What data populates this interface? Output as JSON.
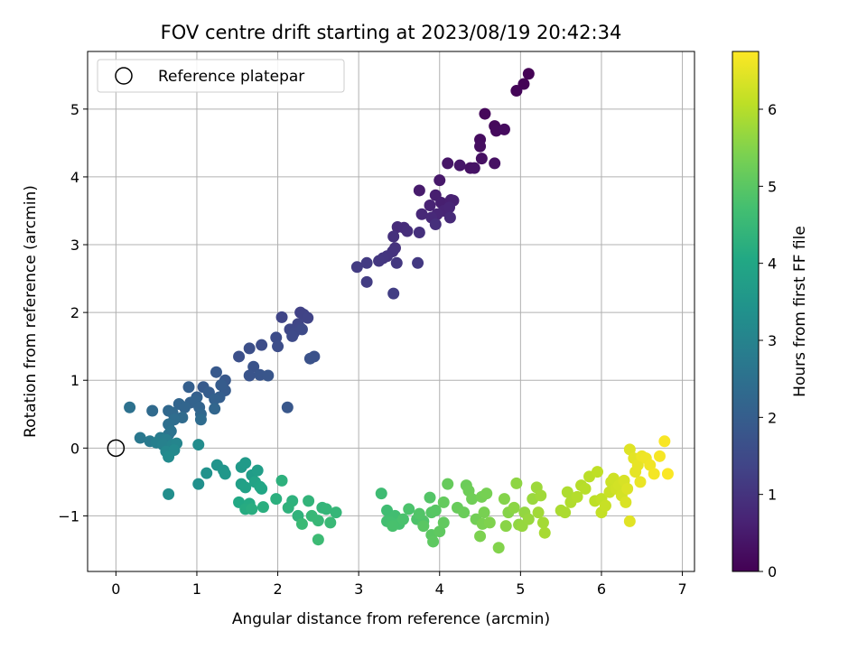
{
  "chart_data": {
    "type": "scatter",
    "title": "FOV centre drift starting at 2023/08/19 20:42:34",
    "xlabel": "Angular distance from reference (arcmin)",
    "ylabel": "Rotation from reference (arcmin)",
    "xlim": [
      -0.35,
      7.15
    ],
    "ylim": [
      -1.82,
      5.85
    ],
    "xticks": [
      0,
      1,
      2,
      3,
      4,
      5,
      6,
      7
    ],
    "yticks": [
      -1,
      0,
      1,
      2,
      3,
      4,
      5
    ],
    "grid": true,
    "legend": {
      "placement": "top-left",
      "entries": [
        "Reference platepar"
      ]
    },
    "reference_point": {
      "x": 0,
      "y": 0
    },
    "colorbar": {
      "label": "Hours from first FF file",
      "range": [
        0,
        6.75
      ],
      "ticks": [
        0,
        1,
        2,
        3,
        4,
        5,
        6
      ],
      "colormap": "viridis"
    },
    "points": [
      [
        5.1,
        5.52,
        0.02
      ],
      [
        5.04,
        5.37,
        0.05
      ],
      [
        4.95,
        5.27,
        0.08
      ],
      [
        4.56,
        4.93,
        0.12
      ],
      [
        4.68,
        4.75,
        0.15
      ],
      [
        4.7,
        4.68,
        0.18
      ],
      [
        4.8,
        4.7,
        0.2
      ],
      [
        4.5,
        4.55,
        0.22
      ],
      [
        4.5,
        4.45,
        0.25
      ],
      [
        4.52,
        4.27,
        0.28
      ],
      [
        4.68,
        4.2,
        0.3
      ],
      [
        4.38,
        4.13,
        0.33
      ],
      [
        4.43,
        4.13,
        0.35
      ],
      [
        4.1,
        4.2,
        0.38
      ],
      [
        4.25,
        4.17,
        0.4
      ],
      [
        4.0,
        3.95,
        0.45
      ],
      [
        3.75,
        3.8,
        0.5
      ],
      [
        3.95,
        3.73,
        0.55
      ],
      [
        4.02,
        3.62,
        0.58
      ],
      [
        4.14,
        3.66,
        0.6
      ],
      [
        4.17,
        3.65,
        0.62
      ],
      [
        3.88,
        3.58,
        0.65
      ],
      [
        4.05,
        3.5,
        0.68
      ],
      [
        4.12,
        3.55,
        0.7
      ],
      [
        3.97,
        3.45,
        0.72
      ],
      [
        3.78,
        3.45,
        0.75
      ],
      [
        3.9,
        3.4,
        0.78
      ],
      [
        4.13,
        3.4,
        0.8
      ],
      [
        3.48,
        3.26,
        0.83
      ],
      [
        3.56,
        3.25,
        0.85
      ],
      [
        3.6,
        3.2,
        0.88
      ],
      [
        3.95,
        3.3,
        0.9
      ],
      [
        3.75,
        3.18,
        0.92
      ],
      [
        3.43,
        3.12,
        0.95
      ],
      [
        3.45,
        2.95,
        0.98
      ],
      [
        3.42,
        2.9,
        1.0
      ],
      [
        3.35,
        2.83,
        1.02
      ],
      [
        3.3,
        2.8,
        1.05
      ],
      [
        3.25,
        2.76,
        1.08
      ],
      [
        3.47,
        2.73,
        1.1
      ],
      [
        3.73,
        2.73,
        1.12
      ],
      [
        3.1,
        2.73,
        1.15
      ],
      [
        2.98,
        2.67,
        1.18
      ],
      [
        3.1,
        2.45,
        1.2
      ],
      [
        3.43,
        2.28,
        1.22
      ],
      [
        2.28,
        2.0,
        1.3
      ],
      [
        2.32,
        1.97,
        1.32
      ],
      [
        2.37,
        1.92,
        1.35
      ],
      [
        2.05,
        1.93,
        1.38
      ],
      [
        2.25,
        1.83,
        1.4
      ],
      [
        2.28,
        1.77,
        1.42
      ],
      [
        2.15,
        1.75,
        1.45
      ],
      [
        2.2,
        1.7,
        1.48
      ],
      [
        2.3,
        1.75,
        1.5
      ],
      [
        2.18,
        1.65,
        1.52
      ],
      [
        1.98,
        1.63,
        1.55
      ],
      [
        1.8,
        1.52,
        1.58
      ],
      [
        2.0,
        1.5,
        1.6
      ],
      [
        1.65,
        1.47,
        1.62
      ],
      [
        1.52,
        1.35,
        1.65
      ],
      [
        2.45,
        1.35,
        1.68
      ],
      [
        2.4,
        1.32,
        1.7
      ],
      [
        1.7,
        1.2,
        1.72
      ],
      [
        1.65,
        1.07,
        1.75
      ],
      [
        1.78,
        1.08,
        1.78
      ],
      [
        1.88,
        1.07,
        1.8
      ],
      [
        2.12,
        0.6,
        1.82
      ],
      [
        1.35,
        1.0,
        1.85
      ],
      [
        1.24,
        1.12,
        1.88
      ],
      [
        1.08,
        0.9,
        1.9
      ],
      [
        1.35,
        0.85,
        1.92
      ],
      [
        1.3,
        0.93,
        1.95
      ],
      [
        1.15,
        0.82,
        1.98
      ],
      [
        1.28,
        0.75,
        2.0
      ],
      [
        0.9,
        0.9,
        2.02
      ],
      [
        1.0,
        0.75,
        2.05
      ],
      [
        1.22,
        0.72,
        2.08
      ],
      [
        0.92,
        0.67,
        2.1
      ],
      [
        0.98,
        0.7,
        2.12
      ],
      [
        1.03,
        0.6,
        2.15
      ],
      [
        0.78,
        0.65,
        2.18
      ],
      [
        0.85,
        0.6,
        2.2
      ],
      [
        1.22,
        0.58,
        2.22
      ],
      [
        1.05,
        0.5,
        2.25
      ],
      [
        0.65,
        0.55,
        2.28
      ],
      [
        0.7,
        0.52,
        2.3
      ],
      [
        0.45,
        0.55,
        2.32
      ],
      [
        0.82,
        0.45,
        2.35
      ],
      [
        1.05,
        0.42,
        2.38
      ],
      [
        0.72,
        0.42,
        2.4
      ],
      [
        0.65,
        0.35,
        2.45
      ],
      [
        0.17,
        0.6,
        2.5
      ],
      [
        0.68,
        0.25,
        2.55
      ],
      [
        0.65,
        0.2,
        2.6
      ],
      [
        0.3,
        0.15,
        2.7
      ],
      [
        0.42,
        0.1,
        2.75
      ],
      [
        0.55,
        0.15,
        2.8
      ],
      [
        0.62,
        0.12,
        2.85
      ],
      [
        0.5,
        0.08,
        2.9
      ],
      [
        0.58,
        0.05,
        2.95
      ],
      [
        0.7,
        0.05,
        3.0
      ],
      [
        0.75,
        0.07,
        3.05
      ],
      [
        0.62,
        -0.05,
        3.1
      ],
      [
        0.72,
        -0.03,
        3.15
      ],
      [
        0.65,
        -0.13,
        3.2
      ],
      [
        1.02,
        0.05,
        3.25
      ],
      [
        0.65,
        -0.68,
        3.3
      ],
      [
        1.02,
        -0.53,
        3.35
      ],
      [
        1.12,
        -0.37,
        3.4
      ],
      [
        1.25,
        -0.25,
        3.45
      ],
      [
        1.33,
        -0.33,
        3.5
      ],
      [
        1.35,
        -0.38,
        3.55
      ],
      [
        1.55,
        -0.28,
        3.6
      ],
      [
        1.6,
        -0.22,
        3.65
      ],
      [
        1.68,
        -0.4,
        3.7
      ],
      [
        1.75,
        -0.33,
        3.75
      ],
      [
        1.55,
        -0.53,
        3.8
      ],
      [
        1.6,
        -0.58,
        3.85
      ],
      [
        1.72,
        -0.5,
        3.9
      ],
      [
        1.78,
        -0.57,
        3.95
      ],
      [
        1.8,
        -0.6,
        4.0
      ],
      [
        1.52,
        -0.8,
        4.05
      ],
      [
        1.65,
        -0.82,
        4.1
      ],
      [
        1.6,
        -0.9,
        4.15
      ],
      [
        1.68,
        -0.9,
        4.2
      ],
      [
        1.82,
        -0.87,
        4.22
      ],
      [
        1.98,
        -0.75,
        4.25
      ],
      [
        2.05,
        -0.48,
        4.28
      ],
      [
        2.18,
        -0.78,
        4.3
      ],
      [
        2.13,
        -0.88,
        4.32
      ],
      [
        2.25,
        -1.0,
        4.35
      ],
      [
        2.38,
        -0.78,
        4.38
      ],
      [
        2.55,
        -0.88,
        4.4
      ],
      [
        2.6,
        -0.9,
        4.42
      ],
      [
        2.72,
        -0.95,
        4.45
      ],
      [
        2.42,
        -1.0,
        4.48
      ],
      [
        2.5,
        -1.07,
        4.5
      ],
      [
        2.65,
        -1.1,
        4.52
      ],
      [
        2.3,
        -1.12,
        4.55
      ],
      [
        2.5,
        -1.35,
        4.58
      ],
      [
        3.28,
        -0.67,
        4.62
      ],
      [
        3.35,
        -0.92,
        4.65
      ],
      [
        3.45,
        -1.0,
        4.68
      ],
      [
        3.35,
        -1.08,
        4.7
      ],
      [
        3.4,
        -1.1,
        4.72
      ],
      [
        3.5,
        -1.12,
        4.75
      ],
      [
        3.42,
        -1.15,
        4.78
      ],
      [
        3.55,
        -1.05,
        4.8
      ],
      [
        3.62,
        -0.9,
        4.82
      ],
      [
        3.72,
        -1.05,
        4.85
      ],
      [
        3.8,
        -1.08,
        4.88
      ],
      [
        3.75,
        -0.97,
        4.9
      ],
      [
        3.88,
        -0.73,
        4.92
      ],
      [
        3.9,
        -0.95,
        4.95
      ],
      [
        3.95,
        -0.92,
        4.98
      ],
      [
        3.8,
        -1.15,
        5.0
      ],
      [
        3.9,
        -1.28,
        5.02
      ],
      [
        3.92,
        -1.38,
        5.05
      ],
      [
        4.0,
        -1.23,
        5.08
      ],
      [
        4.05,
        -1.1,
        5.1
      ],
      [
        4.05,
        -0.8,
        5.12
      ],
      [
        4.1,
        -0.53,
        5.15
      ],
      [
        4.22,
        -0.88,
        5.18
      ],
      [
        4.3,
        -0.95,
        5.2
      ],
      [
        4.33,
        -0.55,
        5.22
      ],
      [
        4.36,
        -0.63,
        5.25
      ],
      [
        4.4,
        -0.75,
        5.28
      ],
      [
        4.45,
        -1.05,
        5.3
      ],
      [
        4.52,
        -0.72,
        5.32
      ],
      [
        4.58,
        -0.67,
        5.35
      ],
      [
        4.55,
        -0.95,
        5.38
      ],
      [
        4.53,
        -1.12,
        5.4
      ],
      [
        4.5,
        -1.3,
        5.42
      ],
      [
        4.62,
        -1.1,
        5.45
      ],
      [
        4.73,
        -1.47,
        5.48
      ],
      [
        4.8,
        -0.75,
        5.5
      ],
      [
        4.85,
        -0.95,
        5.52
      ],
      [
        4.82,
        -1.15,
        5.55
      ],
      [
        4.92,
        -0.88,
        5.58
      ],
      [
        4.95,
        -0.52,
        5.6
      ],
      [
        4.98,
        -1.13,
        5.62
      ],
      [
        5.05,
        -0.95,
        5.65
      ],
      [
        5.02,
        -1.15,
        5.68
      ],
      [
        5.1,
        -1.05,
        5.7
      ],
      [
        5.15,
        -0.75,
        5.72
      ],
      [
        5.2,
        -0.58,
        5.75
      ],
      [
        5.25,
        -0.7,
        5.78
      ],
      [
        5.22,
        -0.95,
        5.8
      ],
      [
        5.28,
        -1.1,
        5.82
      ],
      [
        5.3,
        -1.25,
        5.85
      ],
      [
        5.5,
        -0.92,
        5.88
      ],
      [
        5.55,
        -0.95,
        5.9
      ],
      [
        5.58,
        -0.65,
        5.92
      ],
      [
        5.62,
        -0.8,
        5.95
      ],
      [
        5.7,
        -0.72,
        5.98
      ],
      [
        5.75,
        -0.55,
        6.0
      ],
      [
        5.8,
        -0.6,
        6.02
      ],
      [
        5.85,
        -0.42,
        6.05
      ],
      [
        5.92,
        -0.78,
        6.08
      ],
      [
        5.95,
        -0.35,
        6.1
      ],
      [
        6.0,
        -0.75,
        6.12
      ],
      [
        6.0,
        -0.95,
        6.15
      ],
      [
        6.05,
        -0.85,
        6.18
      ],
      [
        6.1,
        -0.65,
        6.2
      ],
      [
        6.12,
        -0.5,
        6.22
      ],
      [
        6.15,
        -0.45,
        6.25
      ],
      [
        6.18,
        -0.6,
        6.28
      ],
      [
        6.22,
        -0.55,
        6.3
      ],
      [
        6.25,
        -0.7,
        6.32
      ],
      [
        6.28,
        -0.48,
        6.35
      ],
      [
        6.3,
        -0.8,
        6.38
      ],
      [
        6.32,
        -0.6,
        6.4
      ],
      [
        6.35,
        -0.02,
        6.42
      ],
      [
        6.35,
        -1.08,
        6.45
      ],
      [
        6.4,
        -0.15,
        6.48
      ],
      [
        6.42,
        -0.35,
        6.5
      ],
      [
        6.45,
        -0.25,
        6.52
      ],
      [
        6.48,
        -0.5,
        6.55
      ],
      [
        6.5,
        -0.12,
        6.57
      ],
      [
        6.55,
        -0.15,
        6.6
      ],
      [
        6.6,
        -0.25,
        6.62
      ],
      [
        6.65,
        -0.38,
        6.65
      ],
      [
        6.72,
        -0.12,
        6.68
      ],
      [
        6.78,
        0.1,
        6.7
      ],
      [
        6.82,
        -0.38,
        6.72
      ]
    ]
  }
}
